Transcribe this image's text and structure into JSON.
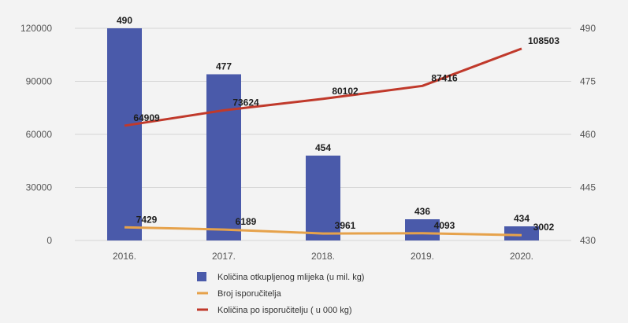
{
  "chart_data": {
    "type": "bar",
    "categories": [
      "2016.",
      "2017.",
      "2018.",
      "2019.",
      "2020."
    ],
    "y_left": {
      "min": 0,
      "max": 120000,
      "ticks": [
        "0",
        "30000",
        "60000",
        "90000",
        "120000"
      ]
    },
    "y_right": {
      "min": 430,
      "max": 490,
      "ticks": [
        "430",
        "445",
        "460",
        "475",
        "490"
      ]
    },
    "grid": true,
    "legend_position": "bottom",
    "series": [
      {
        "name": "Količina otkupljenog mlijeka (u mil. kg)",
        "type": "bar",
        "axis": "right",
        "color": "#4a5aaa",
        "values": [
          490,
          477,
          454,
          436,
          434
        ],
        "labels": [
          "490",
          "477",
          "454",
          "436",
          "434"
        ]
      },
      {
        "name": "Broj isporučitelja",
        "type": "line",
        "axis": "left",
        "color": "#e6a24b",
        "values": [
          7429,
          6189,
          3961,
          4093,
          3002
        ],
        "labels": [
          "7429",
          "6189",
          "3961",
          "4093",
          "3002"
        ]
      },
      {
        "name": "Količina po isporučitelju ( u 000 kg)",
        "type": "line",
        "axis": "left",
        "color": "#c0392b",
        "values": [
          64909,
          73624,
          80102,
          87416,
          108503
        ],
        "labels": [
          "64909",
          "73624",
          "80102",
          "87416",
          "108503"
        ]
      }
    ]
  }
}
